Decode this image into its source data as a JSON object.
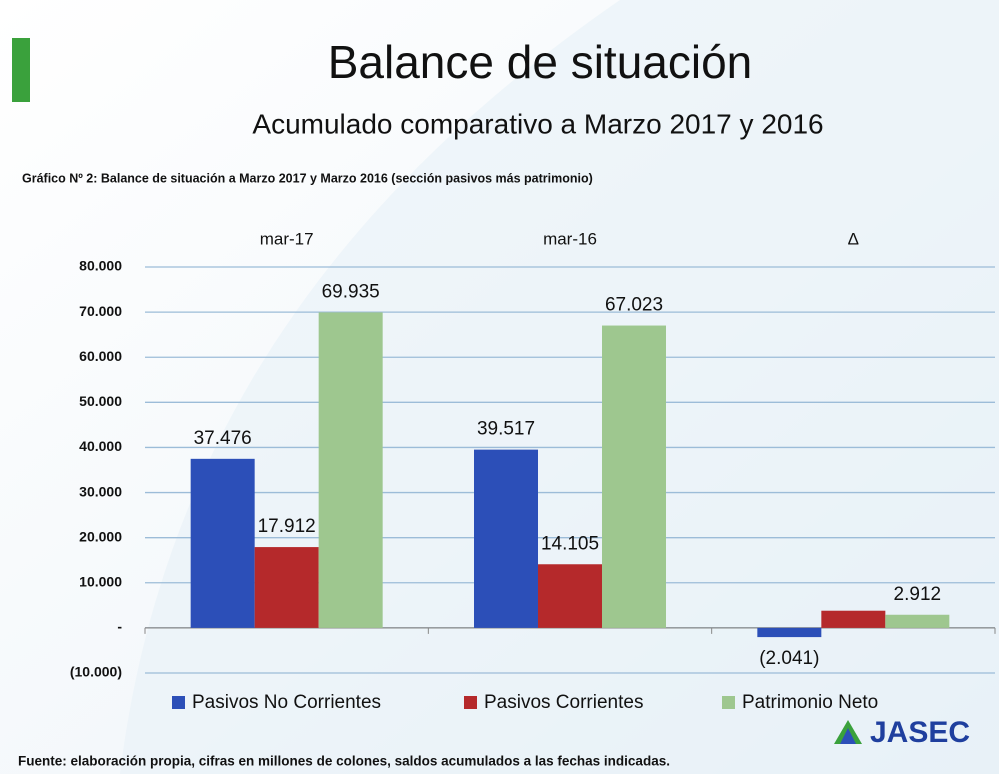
{
  "chart_data": {
    "type": "bar",
    "title": "Balance de situación",
    "subtitle": "Acumulado comparativo a Marzo 2017 y 2016",
    "caption": "Gráfico Nº 2: Balance de situación a Marzo 2017 y Marzo 2016 (sección pasivos más patrimonio)",
    "source": "Fuente: elaboración propia, cifras en millones de colones, saldos acumulados a las fechas indicadas.",
    "logo": "JASEC",
    "categories": [
      "mar-17",
      "mar-16",
      "Δ"
    ],
    "series": [
      {
        "name": "Pasivos No Corrientes",
        "color": "#2c4fb8",
        "values": [
          37476,
          39517,
          -2041
        ],
        "value_labels": [
          "37.476",
          "39.517",
          "(2.041)"
        ]
      },
      {
        "name": "Pasivos Corrientes",
        "color": "#b5292b",
        "values": [
          17912,
          14105,
          3807
        ],
        "value_labels": [
          "17.912",
          "14.105",
          null
        ]
      },
      {
        "name": "Patrimonio Neto",
        "color": "#9ec78f",
        "values": [
          69935,
          67023,
          2912
        ],
        "value_labels": [
          "69.935",
          "67.023",
          "2.912"
        ]
      }
    ],
    "ylim": [
      -10000,
      80000
    ],
    "yticks": [
      {
        "value": -10000,
        "label": "(10.000)"
      },
      {
        "value": 0,
        "label": "-"
      },
      {
        "value": 10000,
        "label": "10.000"
      },
      {
        "value": 20000,
        "label": "20.000"
      },
      {
        "value": 30000,
        "label": "30.000"
      },
      {
        "value": 40000,
        "label": "40.000"
      },
      {
        "value": 50000,
        "label": "50.000"
      },
      {
        "value": 60000,
        "label": "60.000"
      },
      {
        "value": 70000,
        "label": "70.000"
      },
      {
        "value": 80000,
        "label": "80.000"
      }
    ],
    "grid": true,
    "legend": "bottom"
  }
}
